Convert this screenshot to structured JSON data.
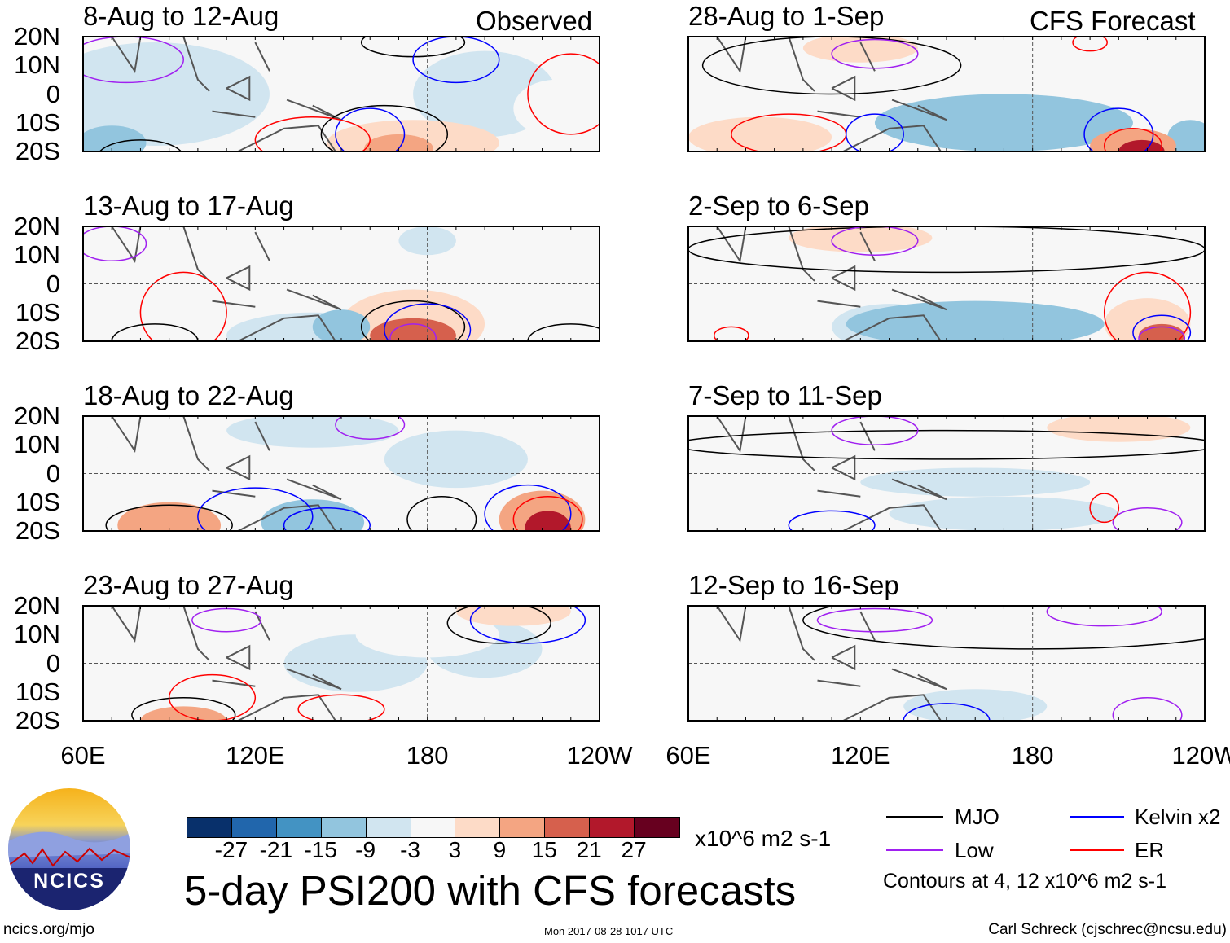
{
  "colorbar": {
    "colors": [
      "#08306b",
      "#2166ac",
      "#4393c3",
      "#92c5de",
      "#d1e5f0",
      "#f7f7f7",
      "#fddbc7",
      "#f4a582",
      "#d6604d",
      "#b2182b",
      "#67001f"
    ],
    "ticks": [
      "-27",
      "-21",
      "-15",
      "-9",
      "-3",
      "3",
      "9",
      "15",
      "21",
      "27"
    ],
    "units": "x10^6 m2 s-1"
  },
  "title": "5-day PSI200 with CFS forecasts",
  "timestamp": "Mon 2017-08-28 1017 UTC",
  "footer_left": "ncics.org/mjo",
  "footer_right": "Carl Schreck (cjschrec@ncsu.edu)",
  "logo_text": "NCICS",
  "legend": {
    "items": [
      {
        "label": "MJO",
        "color": "#000000"
      },
      {
        "label": "Kelvin x2",
        "color": "#0000ff"
      },
      {
        "label": "Low",
        "color": "#a020f0"
      },
      {
        "label": "ER",
        "color": "#ff0000"
      }
    ],
    "note": "Contours at 4, 12 x10^6 m2 s-1"
  },
  "columns": [
    {
      "header": "Observed",
      "lon_labels": [
        "60E",
        "120E",
        "180",
        "120W"
      ]
    },
    {
      "header": "CFS Forecast",
      "lon_labels": [
        "60E",
        "120E",
        "180",
        "120W"
      ]
    }
  ],
  "lat_labels": [
    "20N",
    "10N",
    "0",
    "10S",
    "20S"
  ],
  "chart_data": {
    "type": "heatmap",
    "variable": "200-hPa streamfunction anomaly",
    "lon_range": [
      60,
      240
    ],
    "lat_range": [
      -20,
      20
    ],
    "panels": [
      {
        "title": "8-Aug to 12-Aug",
        "col": 0,
        "row": 0,
        "blobs": [
          [
            85,
            0,
            40,
            18,
            -3
          ],
          [
            70,
            -17,
            12,
            6,
            -9
          ],
          [
            200,
            0,
            25,
            15,
            -3
          ],
          [
            175,
            -17,
            30,
            8,
            9
          ],
          [
            170,
            -19,
            12,
            5,
            15
          ],
          [
            150,
            18,
            20,
            6,
            3
          ],
          [
            225,
            -5,
            15,
            10,
            3
          ]
        ],
        "contours": [
          [
            175,
            18,
            18,
            5,
            "mjo"
          ],
          [
            190,
            12,
            15,
            8,
            "kelvin"
          ],
          [
            165,
            -14,
            22,
            10,
            "mjo"
          ],
          [
            160,
            -14,
            12,
            9,
            "kelvin"
          ],
          [
            140,
            -16,
            20,
            8,
            "er"
          ],
          [
            230,
            0,
            15,
            14,
            "er"
          ],
          [
            80,
            -22,
            15,
            6,
            "mjo"
          ],
          [
            75,
            12,
            20,
            8,
            "low"
          ]
        ]
      },
      {
        "title": "13-Aug to 17-Aug",
        "col": 0,
        "row": 1,
        "blobs": [
          [
            105,
            -10,
            25,
            12,
            3
          ],
          [
            140,
            -18,
            30,
            8,
            -3
          ],
          [
            175,
            -14,
            25,
            12,
            9
          ],
          [
            175,
            -18,
            15,
            6,
            21
          ],
          [
            150,
            -15,
            10,
            6,
            -9
          ],
          [
            180,
            15,
            10,
            5,
            -3
          ],
          [
            230,
            -18,
            15,
            6,
            3
          ]
        ],
        "contours": [
          [
            175,
            -15,
            18,
            9,
            "mjo"
          ],
          [
            180,
            -16,
            15,
            9,
            "kelvin"
          ],
          [
            175,
            -19,
            8,
            5,
            "low"
          ],
          [
            95,
            -10,
            15,
            14,
            "er"
          ],
          [
            85,
            -20,
            15,
            6,
            "mjo"
          ],
          [
            230,
            -20,
            15,
            6,
            "mjo"
          ],
          [
            70,
            14,
            12,
            6,
            "low"
          ]
        ]
      },
      {
        "title": "18-Aug to 22-Aug",
        "col": 0,
        "row": 2,
        "blobs": [
          [
            90,
            0,
            25,
            18,
            3
          ],
          [
            90,
            -18,
            18,
            8,
            15
          ],
          [
            140,
            -17,
            18,
            8,
            -9
          ],
          [
            220,
            -16,
            15,
            10,
            15
          ],
          [
            222,
            -19,
            8,
            6,
            27
          ],
          [
            190,
            5,
            25,
            10,
            -3
          ],
          [
            140,
            15,
            30,
            6,
            -3
          ]
        ],
        "contours": [
          [
            90,
            -18,
            22,
            7,
            "mjo"
          ],
          [
            120,
            -15,
            20,
            10,
            "kelvin"
          ],
          [
            145,
            -18,
            15,
            6,
            "kelvin"
          ],
          [
            215,
            -14,
            15,
            10,
            "kelvin"
          ],
          [
            222,
            -16,
            12,
            8,
            "er"
          ],
          [
            185,
            -16,
            12,
            8,
            "mjo"
          ],
          [
            160,
            17,
            12,
            5,
            "low"
          ]
        ]
      },
      {
        "title": "23-Aug to 27-Aug",
        "col": 0,
        "row": 3,
        "blobs": [
          [
            95,
            -8,
            25,
            14,
            3
          ],
          [
            95,
            -20,
            15,
            5,
            15
          ],
          [
            210,
            18,
            20,
            5,
            9
          ],
          [
            155,
            0,
            25,
            10,
            -3
          ],
          [
            200,
            5,
            20,
            10,
            -3
          ],
          [
            180,
            10,
            25,
            8,
            3
          ]
        ],
        "contours": [
          [
            95,
            -18,
            18,
            6,
            "mjo"
          ],
          [
            105,
            -12,
            15,
            8,
            "er"
          ],
          [
            205,
            14,
            18,
            7,
            "mjo"
          ],
          [
            215,
            15,
            20,
            8,
            "kelvin"
          ],
          [
            110,
            15,
            12,
            4,
            "low"
          ],
          [
            150,
            -16,
            15,
            5,
            "er"
          ]
        ]
      },
      {
        "title": "28-Aug to 1-Sep",
        "col": 1,
        "row": 0,
        "blobs": [
          [
            100,
            10,
            40,
            12,
            3
          ],
          [
            120,
            16,
            20,
            5,
            9
          ],
          [
            85,
            -15,
            25,
            7,
            9
          ],
          [
            170,
            -10,
            45,
            10,
            -9
          ],
          [
            215,
            -18,
            15,
            6,
            15
          ],
          [
            218,
            -20,
            8,
            4,
            27
          ],
          [
            235,
            -15,
            8,
            6,
            -9
          ]
        ],
        "contours": [
          [
            110,
            10,
            45,
            10,
            "mjo"
          ],
          [
            125,
            14,
            15,
            5,
            "low"
          ],
          [
            95,
            -14,
            20,
            7,
            "er"
          ],
          [
            125,
            -14,
            10,
            7,
            "kelvin"
          ],
          [
            210,
            -14,
            12,
            9,
            "kelvin"
          ],
          [
            215,
            -18,
            10,
            6,
            "er"
          ],
          [
            200,
            18,
            6,
            3,
            "er"
          ]
        ]
      },
      {
        "title": "2-Sep to 6-Sep",
        "col": 1,
        "row": 1,
        "blobs": [
          [
            100,
            16,
            45,
            8,
            3
          ],
          [
            120,
            16,
            25,
            5,
            9
          ],
          [
            160,
            -14,
            45,
            8,
            -9
          ],
          [
            130,
            -15,
            20,
            8,
            -3
          ],
          [
            220,
            -14,
            15,
            9,
            9
          ],
          [
            225,
            -18,
            8,
            4,
            21
          ]
        ],
        "contours": [
          [
            150,
            12,
            90,
            8,
            "mjo"
          ],
          [
            125,
            15,
            15,
            5,
            "low"
          ],
          [
            220,
            -10,
            15,
            14,
            "er"
          ],
          [
            225,
            -17,
            10,
            6,
            "kelvin"
          ],
          [
            225,
            -19,
            8,
            4,
            "low"
          ],
          [
            75,
            -18,
            6,
            3,
            "er"
          ]
        ]
      },
      {
        "title": "7-Sep to 11-Sep",
        "col": 1,
        "row": 2,
        "blobs": [
          [
            150,
            15,
            90,
            8,
            3
          ],
          [
            210,
            16,
            25,
            5,
            9
          ],
          [
            170,
            -14,
            40,
            6,
            -3
          ],
          [
            160,
            -3,
            40,
            5,
            -3
          ]
        ],
        "contours": [
          [
            150,
            10,
            95,
            5,
            "mjo"
          ],
          [
            125,
            15,
            15,
            5,
            "low"
          ],
          [
            110,
            -18,
            15,
            5,
            "kelvin"
          ],
          [
            220,
            -17,
            12,
            5,
            "low"
          ],
          [
            205,
            -12,
            5,
            5,
            "er"
          ]
        ]
      },
      {
        "title": "12-Sep to 16-Sep",
        "col": 1,
        "row": 3,
        "blobs": [
          [
            160,
            12,
            90,
            12,
            3
          ],
          [
            175,
            0,
            60,
            10,
            3
          ],
          [
            160,
            -15,
            25,
            6,
            -3
          ]
        ],
        "contours": [
          [
            180,
            15,
            80,
            10,
            "mjo"
          ],
          [
            205,
            18,
            20,
            5,
            "low"
          ],
          [
            125,
            15,
            20,
            4,
            "low"
          ],
          [
            150,
            -20,
            15,
            6,
            "kelvin"
          ],
          [
            220,
            -18,
            12,
            6,
            "low"
          ]
        ]
      }
    ]
  }
}
